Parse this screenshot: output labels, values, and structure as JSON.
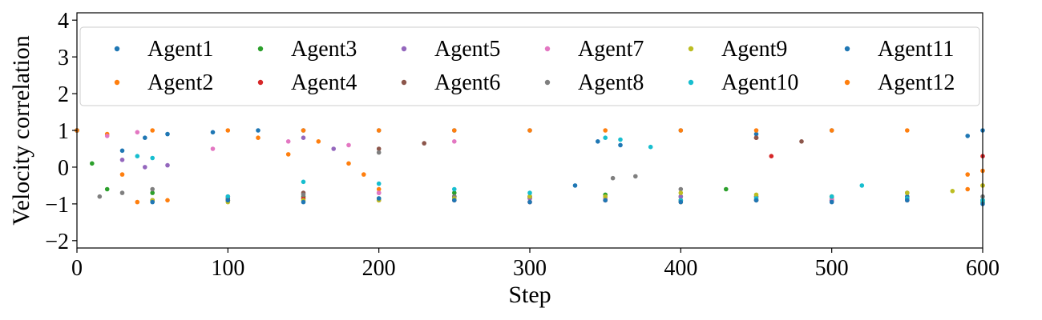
{
  "chart_data": {
    "type": "scatter",
    "title": "",
    "xlabel": "Step",
    "ylabel": "Velocity correlation",
    "xlim": [
      0,
      600
    ],
    "ylim": [
      -2.2,
      4.2
    ],
    "xticks": [
      0,
      100,
      200,
      300,
      400,
      500,
      600
    ],
    "yticks": [
      -2,
      -1,
      0,
      1,
      2,
      3,
      4
    ],
    "ytick_labels": [
      "−2",
      "−1",
      "0",
      "1",
      "2",
      "3",
      "4"
    ],
    "legend_position": "top",
    "legend_columns": 6,
    "series": [
      {
        "name": "Agent1",
        "color": "#1f77b4",
        "x": [
          0,
          30,
          45,
          60,
          90,
          120,
          150,
          200,
          250,
          300,
          330,
          345,
          360,
          400,
          450,
          500,
          550,
          590,
          600
        ],
        "y": [
          1.0,
          0.45,
          0.8,
          0.9,
          0.95,
          1.0,
          1.0,
          1.0,
          1.0,
          1.0,
          -0.5,
          0.7,
          0.6,
          1.0,
          0.9,
          1.0,
          -0.8,
          0.85,
          1.0
        ]
      },
      {
        "name": "Agent2",
        "color": "#ff7f0e",
        "x": [
          0,
          20,
          30,
          40,
          60,
          100,
          120,
          140,
          160,
          180,
          190,
          200,
          250,
          300,
          350,
          400,
          450,
          500,
          550,
          590,
          600
        ],
        "y": [
          1.0,
          0.9,
          -0.2,
          -0.95,
          -0.9,
          -0.9,
          0.8,
          0.35,
          0.7,
          0.1,
          -0.2,
          -0.6,
          -0.8,
          -0.85,
          -0.9,
          -0.95,
          -0.9,
          -0.9,
          -0.85,
          -0.6,
          -0.5
        ]
      },
      {
        "name": "Agent3",
        "color": "#2ca02c",
        "x": [
          0,
          10,
          20,
          50,
          100,
          150,
          200,
          250,
          300,
          350,
          400,
          430,
          450,
          500,
          550,
          600
        ],
        "y": [
          1.0,
          0.1,
          -0.6,
          -0.7,
          -0.9,
          -0.8,
          -0.85,
          -0.7,
          -0.8,
          -0.75,
          -0.8,
          -0.6,
          -0.9,
          -0.85,
          -0.9,
          -0.95
        ]
      },
      {
        "name": "Agent4",
        "color": "#d62728",
        "x": [
          0,
          50,
          100,
          150,
          200,
          250,
          300,
          350,
          400,
          450,
          460,
          500,
          550,
          600
        ],
        "y": [
          1.0,
          -0.9,
          -0.9,
          -0.85,
          -0.9,
          -0.9,
          -0.95,
          -0.9,
          -0.9,
          0.8,
          0.3,
          -0.9,
          -0.9,
          0.3
        ]
      },
      {
        "name": "Agent5",
        "color": "#9467bd",
        "x": [
          0,
          30,
          45,
          60,
          100,
          150,
          170,
          200,
          250,
          300,
          350,
          400,
          450,
          500,
          550,
          600
        ],
        "y": [
          1.0,
          0.2,
          0.0,
          0.05,
          -0.8,
          0.8,
          0.5,
          -0.7,
          -0.8,
          -0.85,
          -0.9,
          -0.8,
          -0.9,
          -0.9,
          -0.85,
          -0.9
        ]
      },
      {
        "name": "Agent6",
        "color": "#8c564b",
        "x": [
          0,
          50,
          100,
          150,
          200,
          230,
          250,
          300,
          350,
          400,
          450,
          480,
          500,
          550,
          600
        ],
        "y": [
          1.0,
          -0.9,
          -0.85,
          -0.7,
          0.5,
          0.65,
          -0.8,
          -0.8,
          -0.85,
          -0.9,
          0.8,
          0.7,
          -0.8,
          -0.85,
          -0.9
        ]
      },
      {
        "name": "Agent7",
        "color": "#e377c2",
        "x": [
          0,
          20,
          40,
          90,
          140,
          180,
          200,
          250,
          300,
          350,
          400,
          450,
          500,
          550,
          600
        ],
        "y": [
          1.0,
          0.85,
          0.95,
          0.5,
          0.7,
          0.6,
          -0.7,
          0.7,
          -0.8,
          -0.85,
          -0.9,
          -0.8,
          -0.85,
          -0.9,
          -0.9
        ]
      },
      {
        "name": "Agent8",
        "color": "#7f7f7f",
        "x": [
          0,
          15,
          30,
          50,
          100,
          150,
          200,
          250,
          300,
          355,
          370,
          400,
          450,
          500,
          550,
          600
        ],
        "y": [
          1.0,
          -0.8,
          -0.7,
          -0.6,
          -0.8,
          -0.75,
          0.4,
          -0.8,
          -0.8,
          -0.3,
          -0.25,
          -0.6,
          -0.8,
          -0.8,
          -0.7,
          -0.8
        ]
      },
      {
        "name": "Agent9",
        "color": "#bcbd22",
        "x": [
          0,
          50,
          100,
          150,
          200,
          250,
          300,
          350,
          400,
          450,
          500,
          550,
          580,
          600
        ],
        "y": [
          1.0,
          -0.9,
          -0.95,
          -0.9,
          -0.9,
          -0.85,
          -0.8,
          -0.8,
          -0.7,
          -0.75,
          -0.8,
          -0.7,
          -0.65,
          -0.5
        ]
      },
      {
        "name": "Agent10",
        "color": "#17becf",
        "x": [
          0,
          40,
          50,
          100,
          150,
          200,
          250,
          300,
          350,
          360,
          380,
          400,
          450,
          500,
          520,
          550,
          600
        ],
        "y": [
          1.0,
          0.3,
          0.25,
          -0.8,
          -0.4,
          -0.45,
          -0.6,
          -0.7,
          0.8,
          0.75,
          0.55,
          -0.9,
          -0.85,
          -0.8,
          -0.5,
          -0.85,
          -0.9
        ]
      },
      {
        "name": "Agent11",
        "color": "#1f77b4",
        "x": [
          0,
          50,
          100,
          150,
          200,
          250,
          300,
          350,
          400,
          450,
          500,
          550,
          600
        ],
        "y": [
          1.0,
          -0.95,
          -0.9,
          -0.95,
          -0.85,
          -0.9,
          -0.95,
          -0.9,
          -0.95,
          -0.9,
          -0.95,
          -0.9,
          -1.0
        ]
      },
      {
        "name": "Agent12",
        "color": "#ff7f0e",
        "x": [
          0,
          50,
          100,
          150,
          200,
          250,
          300,
          350,
          400,
          450,
          500,
          550,
          590,
          600
        ],
        "y": [
          1.0,
          1.0,
          1.0,
          1.0,
          1.0,
          1.0,
          1.0,
          1.0,
          1.0,
          1.0,
          1.0,
          1.0,
          -0.2,
          -0.1
        ]
      }
    ]
  }
}
